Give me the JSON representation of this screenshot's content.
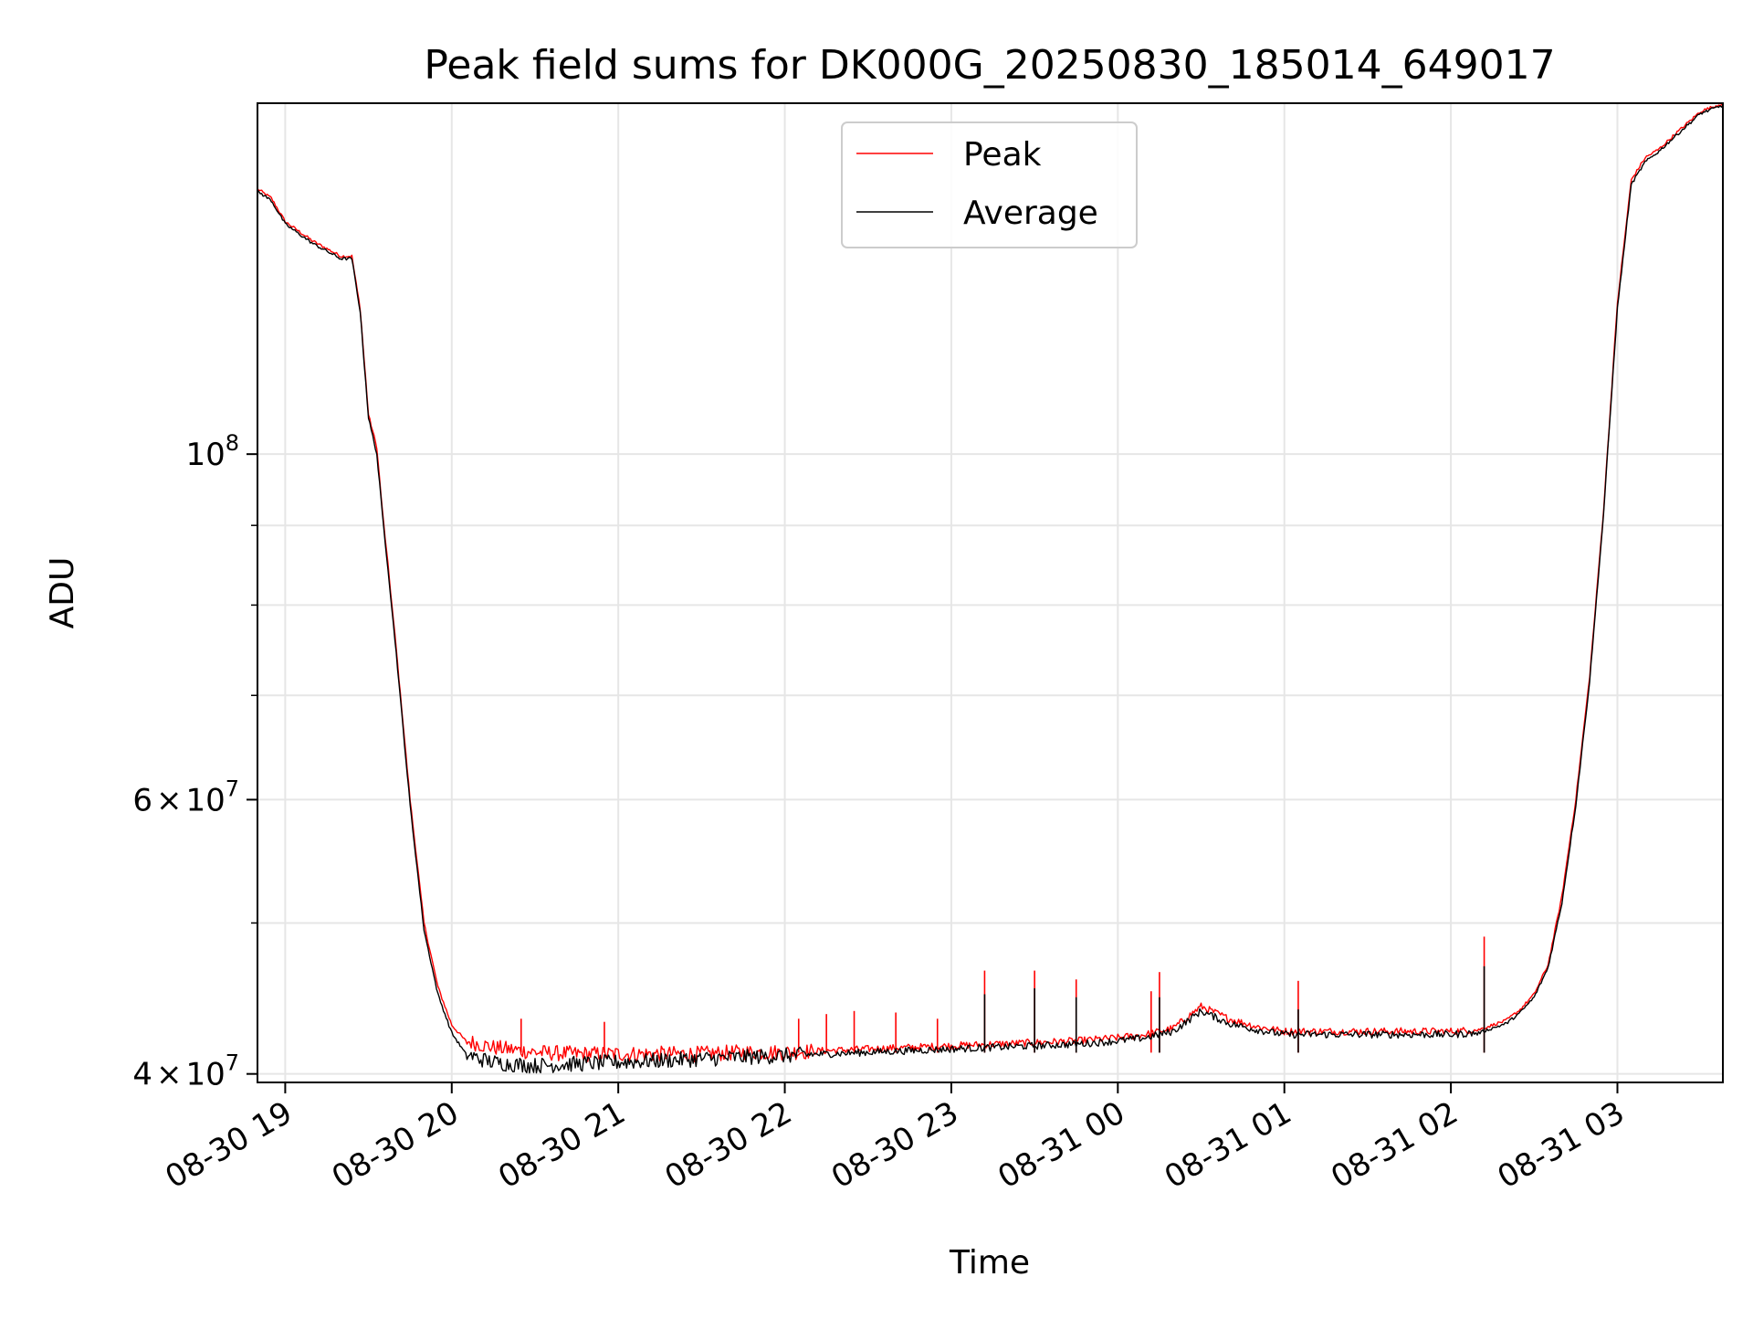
{
  "chart_data": {
    "type": "line",
    "title": "Peak field sums for DK000G_20250830_185014_649017",
    "xlabel": "Time",
    "ylabel": "ADU",
    "y_scale": "log",
    "ylim": [
      39500000,
      168000000
    ],
    "xlim": [
      "2025-08-30 18:50",
      "2025-08-31 03:38"
    ],
    "grid": true,
    "legend_position": "upper-center",
    "x_ticks": [
      {
        "value": "2025-08-30 19:00",
        "label": "08-30 19"
      },
      {
        "value": "2025-08-30 20:00",
        "label": "08-30 20"
      },
      {
        "value": "2025-08-30 21:00",
        "label": "08-30 21"
      },
      {
        "value": "2025-08-30 22:00",
        "label": "08-30 22"
      },
      {
        "value": "2025-08-30 23:00",
        "label": "08-30 23"
      },
      {
        "value": "2025-08-31 00:00",
        "label": "08-31 00"
      },
      {
        "value": "2025-08-31 01:00",
        "label": "08-31 01"
      },
      {
        "value": "2025-08-31 02:00",
        "label": "08-31 02"
      },
      {
        "value": "2025-08-31 03:00",
        "label": "08-31 03"
      }
    ],
    "y_ticks": [
      {
        "value": 40000000,
        "mantissa": "4",
        "exponent": "7"
      },
      {
        "value": 60000000,
        "mantissa": "6",
        "exponent": "7"
      },
      {
        "value": 100000000,
        "mantissa": "",
        "exponent": "8"
      }
    ],
    "y_minor_ticks": [
      50000000,
      70000000,
      80000000,
      90000000
    ],
    "times_sign": "×",
    "tick_base": "10",
    "colors": {
      "peak": "#ff0000",
      "average": "#000000"
    },
    "series": [
      {
        "name": "Peak",
        "x": [
          "2025-08-30 18:50",
          "2025-08-30 18:55",
          "2025-08-30 19:00",
          "2025-08-30 19:10",
          "2025-08-30 19:20",
          "2025-08-30 19:24",
          "2025-08-30 19:27",
          "2025-08-30 19:30",
          "2025-08-30 19:33",
          "2025-08-30 19:35",
          "2025-08-30 19:37",
          "2025-08-30 19:40",
          "2025-08-30 19:45",
          "2025-08-30 19:50",
          "2025-08-30 19:55",
          "2025-08-30 20:00",
          "2025-08-30 20:05",
          "2025-08-30 20:10",
          "2025-08-30 20:15",
          "2025-08-30 20:20",
          "2025-08-30 20:30",
          "2025-08-30 20:45",
          "2025-08-30 21:00",
          "2025-08-30 21:15",
          "2025-08-30 21:30",
          "2025-08-30 21:45",
          "2025-08-30 22:00",
          "2025-08-30 22:15",
          "2025-08-30 22:30",
          "2025-08-30 22:45",
          "2025-08-30 23:00",
          "2025-08-30 23:15",
          "2025-08-30 23:30",
          "2025-08-30 23:45",
          "2025-08-31 00:00",
          "2025-08-31 00:10",
          "2025-08-31 00:20",
          "2025-08-31 00:30",
          "2025-08-31 00:35",
          "2025-08-31 00:40",
          "2025-08-31 00:50",
          "2025-08-31 01:00",
          "2025-08-31 01:15",
          "2025-08-31 01:30",
          "2025-08-31 01:45",
          "2025-08-31 02:00",
          "2025-08-31 02:10",
          "2025-08-31 02:20",
          "2025-08-31 02:25",
          "2025-08-31 02:30",
          "2025-08-31 02:35",
          "2025-08-31 02:40",
          "2025-08-31 02:45",
          "2025-08-31 02:50",
          "2025-08-31 02:55",
          "2025-08-31 03:00",
          "2025-08-31 03:05",
          "2025-08-31 03:10",
          "2025-08-31 03:15",
          "2025-08-31 03:20",
          "2025-08-31 03:25",
          "2025-08-31 03:30",
          "2025-08-31 03:38"
        ],
        "y": [
          148000000,
          146000000,
          141000000,
          137000000,
          134000000,
          134000000,
          124000000,
          106000000,
          101000000,
          92000000,
          85000000,
          75000000,
          60000000,
          50000000,
          45500000,
          43000000,
          42000000,
          41800000,
          41600000,
          41500000,
          41300000,
          41200000,
          41200000,
          41200000,
          41200000,
          41300000,
          41300000,
          41400000,
          41500000,
          41600000,
          41700000,
          41800000,
          41900000,
          42000000,
          42200000,
          42400000,
          42800000,
          44200000,
          43800000,
          43400000,
          42900000,
          42600000,
          42600000,
          42600000,
          42600000,
          42600000,
          42700000,
          43300000,
          44000000,
          45000000,
          47000000,
          52000000,
          60000000,
          72000000,
          92000000,
          125000000,
          150000000,
          155000000,
          157000000,
          160000000,
          163000000,
          166000000,
          168000000
        ],
        "spikes": [
          [
            "2025-08-30 23:12",
            46600000
          ],
          [
            "2025-08-30 23:30",
            46600000
          ],
          [
            "2025-08-30 23:45",
            46000000
          ],
          [
            "2025-08-31 00:12",
            45200000
          ],
          [
            "2025-08-31 00:15",
            46500000
          ],
          [
            "2025-08-31 01:05",
            45900000
          ],
          [
            "2025-08-31 02:12",
            49000000
          ],
          [
            "2025-08-30 20:25",
            43400000
          ],
          [
            "2025-08-30 20:55",
            43200000
          ],
          [
            "2025-08-30 22:05",
            43400000
          ],
          [
            "2025-08-30 22:15",
            43700000
          ],
          [
            "2025-08-30 22:25",
            43900000
          ],
          [
            "2025-08-30 22:40",
            43800000
          ],
          [
            "2025-08-30 22:55",
            43400000
          ]
        ]
      },
      {
        "name": "Average",
        "x": [
          "2025-08-30 18:50",
          "2025-08-30 18:55",
          "2025-08-30 19:00",
          "2025-08-30 19:10",
          "2025-08-30 19:20",
          "2025-08-30 19:24",
          "2025-08-30 19:27",
          "2025-08-30 19:30",
          "2025-08-30 19:33",
          "2025-08-30 19:35",
          "2025-08-30 19:37",
          "2025-08-30 19:40",
          "2025-08-30 19:45",
          "2025-08-30 19:50",
          "2025-08-30 19:55",
          "2025-08-30 20:00",
          "2025-08-30 20:05",
          "2025-08-30 20:10",
          "2025-08-30 20:15",
          "2025-08-30 20:20",
          "2025-08-30 20:30",
          "2025-08-30 20:45",
          "2025-08-30 21:00",
          "2025-08-30 21:15",
          "2025-08-30 21:30",
          "2025-08-30 21:45",
          "2025-08-30 22:00",
          "2025-08-30 22:15",
          "2025-08-30 22:30",
          "2025-08-30 22:45",
          "2025-08-30 23:00",
          "2025-08-30 23:15",
          "2025-08-30 23:30",
          "2025-08-30 23:45",
          "2025-08-31 00:00",
          "2025-08-31 00:10",
          "2025-08-31 00:20",
          "2025-08-31 00:30",
          "2025-08-31 00:35",
          "2025-08-31 00:40",
          "2025-08-31 00:50",
          "2025-08-31 01:00",
          "2025-08-31 01:15",
          "2025-08-31 01:30",
          "2025-08-31 01:45",
          "2025-08-31 02:00",
          "2025-08-31 02:10",
          "2025-08-31 02:20",
          "2025-08-31 02:25",
          "2025-08-31 02:30",
          "2025-08-31 02:35",
          "2025-08-31 02:40",
          "2025-08-31 02:45",
          "2025-08-31 02:50",
          "2025-08-31 02:55",
          "2025-08-31 03:00",
          "2025-08-31 03:05",
          "2025-08-31 03:10",
          "2025-08-31 03:15",
          "2025-08-31 03:20",
          "2025-08-31 03:25",
          "2025-08-31 03:30",
          "2025-08-31 03:38"
        ],
        "y": [
          147500000,
          145500000,
          140500000,
          136500000,
          133500000,
          133500000,
          123500000,
          105500000,
          100000000,
          91500000,
          84500000,
          74500000,
          59500000,
          49500000,
          45000000,
          42500000,
          41200000,
          40900000,
          40700000,
          40600000,
          40500000,
          40600000,
          40700000,
          40800000,
          40900000,
          41000000,
          41100000,
          41200000,
          41300000,
          41400000,
          41500000,
          41600000,
          41700000,
          41800000,
          42000000,
          42200000,
          42600000,
          43900000,
          43500000,
          43100000,
          42700000,
          42400000,
          42400000,
          42400000,
          42400000,
          42400000,
          42500000,
          43100000,
          43800000,
          44800000,
          46800000,
          51500000,
          59500000,
          71500000,
          91500000,
          124000000,
          149000000,
          154000000,
          156500000,
          159500000,
          162500000,
          165500000,
          167500000
        ],
        "spikes": [
          [
            "2025-08-30 23:12",
            45000000
          ],
          [
            "2025-08-30 23:30",
            45400000
          ],
          [
            "2025-08-30 23:45",
            44800000
          ],
          [
            "2025-08-31 00:15",
            44800000
          ],
          [
            "2025-08-31 01:05",
            44000000
          ],
          [
            "2025-08-31 02:12",
            46900000
          ]
        ]
      }
    ]
  }
}
